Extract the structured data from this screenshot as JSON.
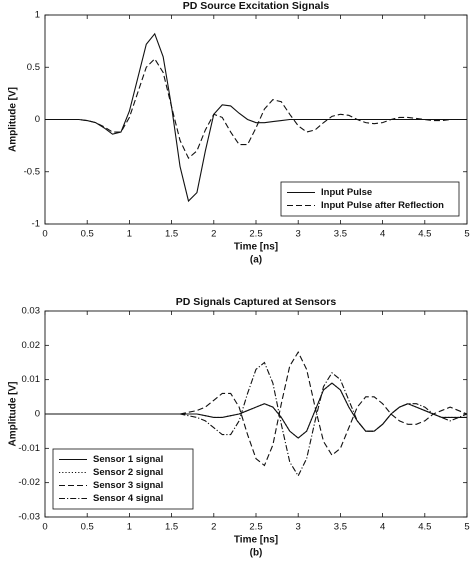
{
  "chart_data": [
    {
      "type": "line",
      "title": "PD Source Excitation Signals",
      "x_label": "Time [ns]",
      "y_label": "Amplitude [V]",
      "caption": "(a)",
      "xlim": [
        0,
        5
      ],
      "ylim": [
        -1,
        1
      ],
      "xticks": [
        0,
        0.5,
        1,
        1.5,
        2,
        2.5,
        3,
        3.5,
        4,
        4.5,
        5
      ],
      "yticks": [
        -1,
        -0.5,
        0,
        0.5,
        1
      ],
      "legend_position": "lower right",
      "x": [
        0,
        0.1,
        0.2,
        0.3,
        0.4,
        0.5,
        0.6,
        0.7,
        0.8,
        0.9,
        1.0,
        1.1,
        1.2,
        1.3,
        1.4,
        1.5,
        1.6,
        1.7,
        1.8,
        1.9,
        2.0,
        2.1,
        2.2,
        2.3,
        2.4,
        2.5,
        2.6,
        2.7,
        2.8,
        2.9,
        3.0,
        3.1,
        3.2,
        3.3,
        3.4,
        3.5,
        3.6,
        3.7,
        3.8,
        3.9,
        4.0,
        4.1,
        4.2,
        4.3,
        4.4,
        4.5,
        4.6,
        4.7,
        4.8,
        4.9,
        5.0
      ],
      "series": [
        {
          "name": "Input Pulse",
          "color": "#111111",
          "dash": "solid",
          "values": [
            0,
            0,
            0,
            0,
            0,
            -0.01,
            -0.03,
            -0.08,
            -0.14,
            -0.12,
            0.08,
            0.4,
            0.72,
            0.82,
            0.6,
            0.12,
            -0.45,
            -0.78,
            -0.7,
            -0.3,
            0.05,
            0.14,
            0.13,
            0.06,
            0,
            -0.03,
            -0.03,
            -0.02,
            -0.01,
            0,
            0,
            0,
            0,
            0,
            0,
            0,
            0,
            0,
            0,
            0,
            0,
            0,
            0,
            0,
            0,
            0,
            0,
            0,
            0,
            0,
            0
          ]
        },
        {
          "name": "Input Pulse after Reflection",
          "color": "#111111",
          "dash": "dashed",
          "values": [
            0,
            0,
            0,
            0,
            0,
            -0.01,
            -0.03,
            -0.07,
            -0.12,
            -0.12,
            0.02,
            0.26,
            0.5,
            0.58,
            0.45,
            0.12,
            -0.2,
            -0.37,
            -0.3,
            -0.1,
            0.05,
            0.02,
            -0.12,
            -0.24,
            -0.24,
            -0.08,
            0.1,
            0.19,
            0.17,
            0.05,
            -0.06,
            -0.12,
            -0.1,
            -0.03,
            0.03,
            0.05,
            0.04,
            0,
            -0.03,
            -0.04,
            -0.03,
            0,
            0.02,
            0.02,
            0.01,
            0,
            -0.01,
            -0.01,
            0,
            0,
            0
          ]
        }
      ]
    },
    {
      "type": "line",
      "title": "PD Signals Captured at Sensors",
      "x_label": "Time [ns]",
      "y_label": "Amplitude [V]",
      "caption": "(b)",
      "xlim": [
        0,
        5
      ],
      "ylim": [
        -0.03,
        0.03
      ],
      "xticks": [
        0,
        0.5,
        1,
        1.5,
        2,
        2.5,
        3,
        3.5,
        4,
        4.5,
        5
      ],
      "yticks": [
        -0.03,
        -0.02,
        -0.01,
        0,
        0.01,
        0.02,
        0.03
      ],
      "legend_position": "lower left",
      "x": [
        0,
        0.5,
        1.0,
        1.5,
        1.6,
        1.7,
        1.8,
        1.9,
        2.0,
        2.1,
        2.2,
        2.3,
        2.4,
        2.5,
        2.6,
        2.7,
        2.8,
        2.9,
        3.0,
        3.1,
        3.2,
        3.3,
        3.4,
        3.5,
        3.6,
        3.7,
        3.8,
        3.9,
        4.0,
        4.1,
        4.2,
        4.3,
        4.4,
        4.5,
        4.6,
        4.7,
        4.8,
        4.9,
        5.0
      ],
      "series": [
        {
          "name": "Sensor 1 signal",
          "color": "#111111",
          "dash": "solid",
          "values": [
            0,
            0,
            0,
            0,
            0,
            0,
            0,
            -0.0005,
            -0.001,
            -0.001,
            -0.0005,
            0,
            0.001,
            0.002,
            0.003,
            0.002,
            -0.001,
            -0.005,
            -0.007,
            -0.005,
            0.001,
            0.007,
            0.009,
            0.007,
            0.002,
            -0.002,
            -0.005,
            -0.005,
            -0.003,
            0,
            0.002,
            0.003,
            0.002,
            0.001,
            0,
            -0.001,
            -0.001,
            -0.001,
            -0.001
          ]
        },
        {
          "name": "Sensor 2 signal",
          "color": "#111111",
          "dash": "dotted",
          "values": [
            0,
            0,
            0,
            0,
            0,
            0,
            0,
            -0.0005,
            -0.001,
            -0.001,
            -0.0005,
            0,
            0.001,
            0.002,
            0.003,
            0.002,
            -0.001,
            -0.005,
            -0.007,
            -0.005,
            0.001,
            0.007,
            0.009,
            0.007,
            0.002,
            -0.002,
            -0.005,
            -0.005,
            -0.003,
            0,
            0.002,
            0.003,
            0.002,
            0.001,
            0,
            -0.001,
            -0.001,
            -0.001,
            -0.001
          ]
        },
        {
          "name": "Sensor 3 signal",
          "color": "#111111",
          "dash": "dashed",
          "values": [
            0,
            0,
            0,
            0,
            0,
            0.0005,
            0.001,
            0.002,
            0.004,
            0.006,
            0.006,
            0.002,
            -0.006,
            -0.013,
            -0.015,
            -0.009,
            0.003,
            0.014,
            0.018,
            0.013,
            0.002,
            -0.008,
            -0.012,
            -0.01,
            -0.004,
            0.002,
            0.005,
            0.005,
            0.003,
            0,
            -0.002,
            -0.003,
            -0.003,
            -0.002,
            0,
            0.001,
            0.002,
            0.001,
            0
          ]
        },
        {
          "name": "Sensor 4 signal",
          "color": "#111111",
          "dash": "dashdot",
          "values": [
            0,
            0,
            0,
            0,
            0,
            -0.0005,
            -0.001,
            -0.002,
            -0.004,
            -0.006,
            -0.006,
            -0.002,
            0.006,
            0.013,
            0.015,
            0.009,
            -0.003,
            -0.014,
            -0.018,
            -0.013,
            -0.002,
            0.008,
            0.012,
            0.01,
            0.004,
            -0.002,
            -0.005,
            -0.005,
            -0.003,
            0,
            0.002,
            0.003,
            0.003,
            0.002,
            0,
            -0.001,
            -0.002,
            -0.001,
            0
          ]
        }
      ]
    }
  ]
}
